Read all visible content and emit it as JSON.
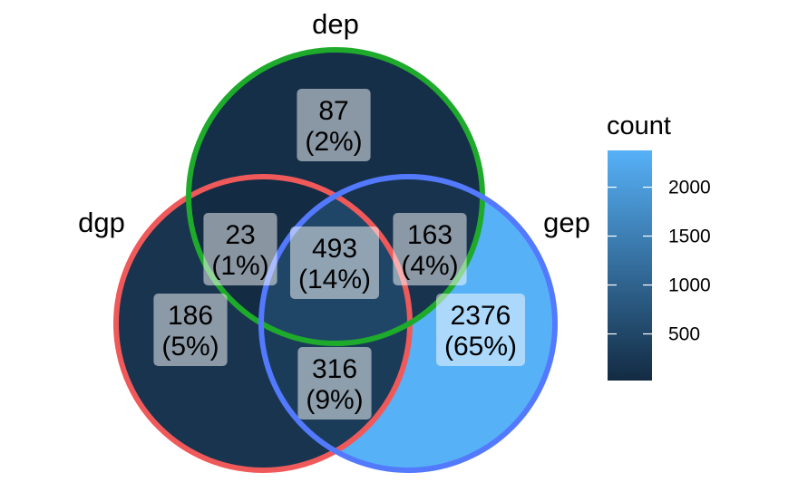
{
  "chart_data": {
    "type": "venn",
    "sets": [
      {
        "name": "dgp",
        "color": "#F0595A"
      },
      {
        "name": "dep",
        "color": "#1EAA2B"
      },
      {
        "name": "gep",
        "color": "#5379FF"
      }
    ],
    "regions": [
      {
        "sets": [
          "dep"
        ],
        "count": 87,
        "percent": "(2%)"
      },
      {
        "sets": [
          "dgp",
          "dep"
        ],
        "count": 23,
        "percent": "(1%)"
      },
      {
        "sets": [
          "dgp",
          "dep",
          "gep"
        ],
        "count": 493,
        "percent": "(14%)"
      },
      {
        "sets": [
          "dep",
          "gep"
        ],
        "count": 163,
        "percent": "(4%)"
      },
      {
        "sets": [
          "dgp"
        ],
        "count": 186,
        "percent": "(5%)"
      },
      {
        "sets": [
          "gep"
        ],
        "count": 2376,
        "percent": "(65%)"
      },
      {
        "sets": [
          "dgp",
          "gep"
        ],
        "count": 316,
        "percent": "(9%)"
      }
    ],
    "legend": {
      "title": "count",
      "ticks": [
        2000,
        1500,
        1000,
        500
      ],
      "range": [
        23,
        2376
      ],
      "low_color": "#132B43",
      "high_color": "#56B1F7",
      "placement": "right"
    }
  }
}
